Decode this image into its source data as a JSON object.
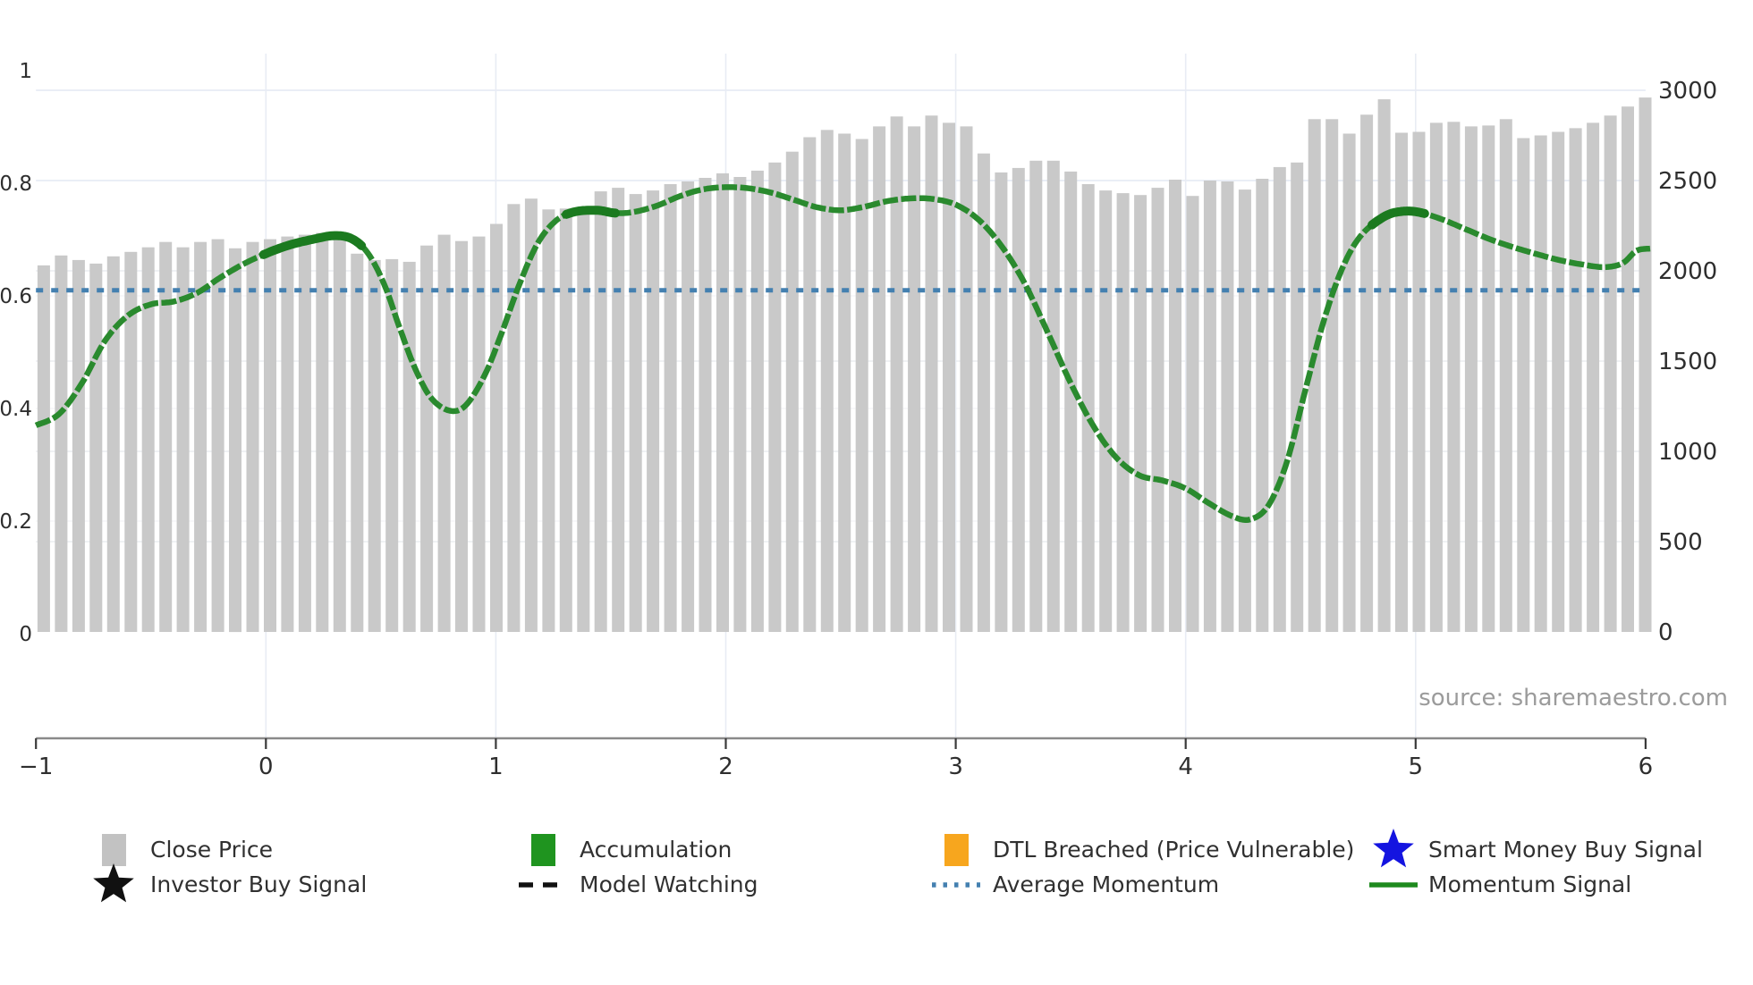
{
  "source": {
    "text": "source: sharemaestro.com"
  },
  "colors": {
    "close_price_bar": "#c9c9c9",
    "momentum_green": "#2a8a2e",
    "accumulation_green": "#1b7a1f",
    "average_momentum_blue": "#4480b0",
    "dtl_orange": "#f7a61e",
    "smart_money_blue": "#1414e0",
    "signal_black": "#111111"
  },
  "axes": {
    "x": {
      "min": -1,
      "max": 6,
      "ticks": [
        -1,
        0,
        1,
        2,
        3,
        4,
        5,
        6
      ],
      "tick_labels": [
        "−1",
        "0",
        "1",
        "2",
        "3",
        "4",
        "5",
        "6"
      ]
    },
    "y_left": {
      "min": 0,
      "max": 1,
      "ticks": [
        0,
        0.2,
        0.4,
        0.6,
        0.8,
        1
      ],
      "tick_labels": [
        "0",
        "0.2",
        "0.4",
        "0.6",
        "0.8",
        "1"
      ]
    },
    "y_right": {
      "min": 0,
      "max": 3000,
      "ticks": [
        0,
        500,
        1000,
        1500,
        2000,
        2500,
        3000
      ],
      "tick_labels": [
        "0",
        "500",
        "1000",
        "1500",
        "2000",
        "2500",
        "3000"
      ]
    }
  },
  "chart_data": {
    "type": "combo",
    "grid": true,
    "legend_position": "bottom",
    "series": [
      {
        "name": "Close Price",
        "type": "bar",
        "axis": "right",
        "x_start": -0.966,
        "x_step": 0.0757,
        "values": [
          2030,
          2085,
          2060,
          2040,
          2080,
          2105,
          2130,
          2160,
          2130,
          2160,
          2175,
          2125,
          2160,
          2175,
          2190,
          2200,
          2210,
          2215,
          2095,
          2060,
          2065,
          2050,
          2140,
          2200,
          2165,
          2190,
          2260,
          2370,
          2400,
          2340,
          2345,
          2350,
          2440,
          2460,
          2425,
          2445,
          2480,
          2495,
          2515,
          2540,
          2520,
          2555,
          2600,
          2660,
          2740,
          2780,
          2760,
          2730,
          2800,
          2855,
          2800,
          2860,
          2820,
          2800,
          2650,
          2545,
          2570,
          2610,
          2610,
          2550,
          2480,
          2445,
          2430,
          2420,
          2460,
          2505,
          2415,
          2500,
          2495,
          2450,
          2510,
          2575,
          2600,
          2840,
          2840,
          2760,
          2865,
          2950,
          2765,
          2770,
          2820,
          2825,
          2800,
          2805,
          2840,
          2735,
          2750,
          2770,
          2790,
          2820,
          2860,
          2910,
          2960
        ]
      },
      {
        "name": "Momentum Signal",
        "type": "line",
        "axis": "left",
        "points": [
          [
            -1.0,
            0.37
          ],
          [
            -0.9,
            0.39
          ],
          [
            -0.8,
            0.445
          ],
          [
            -0.7,
            0.52
          ],
          [
            -0.6,
            0.565
          ],
          [
            -0.5,
            0.585
          ],
          [
            -0.4,
            0.59
          ],
          [
            -0.3,
            0.605
          ],
          [
            -0.2,
            0.632
          ],
          [
            -0.1,
            0.656
          ],
          [
            0.0,
            0.675
          ],
          [
            0.1,
            0.69
          ],
          [
            0.2,
            0.7
          ],
          [
            0.3,
            0.707
          ],
          [
            0.38,
            0.7
          ],
          [
            0.45,
            0.672
          ],
          [
            0.52,
            0.615
          ],
          [
            0.58,
            0.545
          ],
          [
            0.65,
            0.47
          ],
          [
            0.72,
            0.418
          ],
          [
            0.8,
            0.396
          ],
          [
            0.87,
            0.406
          ],
          [
            0.95,
            0.458
          ],
          [
            1.02,
            0.528
          ],
          [
            1.1,
            0.618
          ],
          [
            1.18,
            0.692
          ],
          [
            1.26,
            0.733
          ],
          [
            1.34,
            0.749
          ],
          [
            1.44,
            0.752
          ],
          [
            1.52,
            0.747
          ],
          [
            1.6,
            0.749
          ],
          [
            1.7,
            0.76
          ],
          [
            1.8,
            0.777
          ],
          [
            1.9,
            0.789
          ],
          [
            2.0,
            0.793
          ],
          [
            2.1,
            0.791
          ],
          [
            2.2,
            0.783
          ],
          [
            2.3,
            0.77
          ],
          [
            2.4,
            0.757
          ],
          [
            2.5,
            0.752
          ],
          [
            2.6,
            0.758
          ],
          [
            2.7,
            0.768
          ],
          [
            2.8,
            0.773
          ],
          [
            2.9,
            0.772
          ],
          [
            3.0,
            0.762
          ],
          [
            3.1,
            0.735
          ],
          [
            3.2,
            0.688
          ],
          [
            3.3,
            0.622
          ],
          [
            3.4,
            0.535
          ],
          [
            3.5,
            0.445
          ],
          [
            3.6,
            0.368
          ],
          [
            3.7,
            0.312
          ],
          [
            3.8,
            0.281
          ],
          [
            3.9,
            0.272
          ],
          [
            4.0,
            0.258
          ],
          [
            4.1,
            0.232
          ],
          [
            4.2,
            0.209
          ],
          [
            4.28,
            0.203
          ],
          [
            4.36,
            0.228
          ],
          [
            4.44,
            0.305
          ],
          [
            4.52,
            0.432
          ],
          [
            4.6,
            0.555
          ],
          [
            4.68,
            0.648
          ],
          [
            4.76,
            0.706
          ],
          [
            4.86,
            0.74
          ],
          [
            4.94,
            0.75
          ],
          [
            5.02,
            0.748
          ],
          [
            5.12,
            0.735
          ],
          [
            5.22,
            0.718
          ],
          [
            5.32,
            0.701
          ],
          [
            5.42,
            0.687
          ],
          [
            5.52,
            0.675
          ],
          [
            5.62,
            0.664
          ],
          [
            5.72,
            0.656
          ],
          [
            5.82,
            0.651
          ],
          [
            5.9,
            0.658
          ],
          [
            5.96,
            0.68
          ],
          [
            6.02,
            0.684
          ]
        ]
      },
      {
        "name": "Accumulation",
        "type": "line-segments",
        "axis": "left",
        "x_ranges": [
          [
            -0.02,
            0.42
          ],
          [
            1.3,
            1.52
          ],
          [
            4.8,
            5.04
          ]
        ]
      },
      {
        "name": "Average Momentum",
        "type": "hline",
        "axis": "left",
        "value": 0.61
      }
    ]
  },
  "legend": {
    "items": [
      {
        "id": "close-price",
        "label": "Close Price",
        "swatch": "square",
        "color": "#c2c2c2"
      },
      {
        "id": "accumulation",
        "label": "Accumulation",
        "swatch": "square",
        "color": "#1f941f"
      },
      {
        "id": "dtl-breached",
        "label": "DTL Breached (Price Vulnerable)",
        "swatch": "square",
        "color": "#f7a61e"
      },
      {
        "id": "smart-money-buy-signal",
        "label": "Smart Money Buy Signal",
        "swatch": "star",
        "color": "#1414e0"
      },
      {
        "id": "investor-buy-signal",
        "label": "Investor Buy Signal",
        "swatch": "star",
        "color": "#111111"
      },
      {
        "id": "model-watching",
        "label": "Model Watching",
        "swatch": "dash-line",
        "color": "#111111"
      },
      {
        "id": "average-momentum",
        "label": "Average Momentum",
        "swatch": "dotted-line",
        "color": "#4480b0"
      },
      {
        "id": "momentum-signal",
        "label": "Momentum Signal",
        "swatch": "solid-line",
        "color": "#1e8a1e"
      }
    ]
  }
}
